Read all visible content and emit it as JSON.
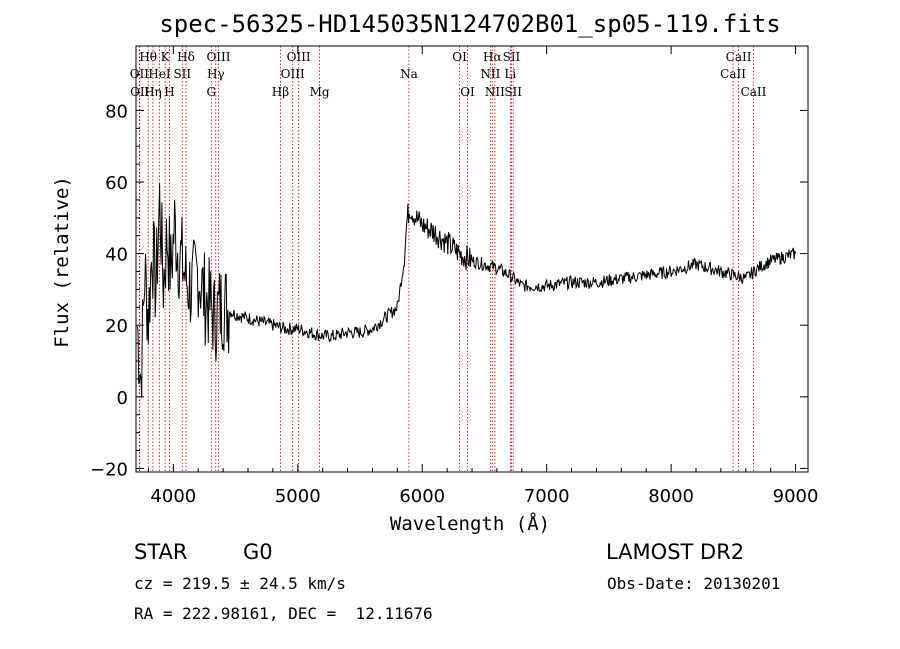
{
  "title": "spec-56325-HD145035N124702B01_sp05-119.fits",
  "info": {
    "class": "STAR",
    "subclass": "G0",
    "cz": "cz = 219.5 ± 24.5 km/s",
    "coords": "RA = 222.98161, DEC =  12.11676",
    "survey": "LAMOST DR2",
    "obs_date": "Obs-Date: 20130201"
  },
  "chart_data": {
    "type": "line",
    "xlabel": "Wavelength (Å)",
    "ylabel": "Flux (relative)",
    "xlim": [
      3700,
      9100
    ],
    "ylim": [
      -21,
      98
    ],
    "xticks": [
      4000,
      5000,
      6000,
      7000,
      8000,
      9000
    ],
    "yticks": [
      -20,
      0,
      20,
      40,
      60,
      80
    ],
    "line_color": "#000000",
    "marker_color": "#c00000",
    "spectral_lines": [
      {
        "label": "Hθ",
        "wavelength": 3798,
        "row": 0
      },
      {
        "label": "OII",
        "wavelength": 3727,
        "row": 1
      },
      {
        "label": "OII",
        "wavelength": 3730,
        "row": 2
      },
      {
        "label": "Hη",
        "wavelength": 3836,
        "row": 2
      },
      {
        "label": "HeI",
        "wavelength": 3889,
        "row": 1
      },
      {
        "label": "K",
        "wavelength": 3934,
        "row": 0
      },
      {
        "label": "H",
        "wavelength": 3969,
        "row": 2
      },
      {
        "label": "SII",
        "wavelength": 4072,
        "row": 1
      },
      {
        "label": "Hδ",
        "wavelength": 4102,
        "row": 0
      },
      {
        "label": "OIII",
        "wavelength": 4363,
        "row": 0
      },
      {
        "label": "Hγ",
        "wavelength": 4341,
        "row": 1
      },
      {
        "label": "G",
        "wavelength": 4305,
        "row": 2
      },
      {
        "label": "Hβ",
        "wavelength": 4861,
        "row": 2
      },
      {
        "label": "OIII",
        "wavelength": 5007,
        "row": 0
      },
      {
        "label": "OIII",
        "wavelength": 4959,
        "row": 1
      },
      {
        "label": "Mg",
        "wavelength": 5175,
        "row": 2
      },
      {
        "label": "Na",
        "wavelength": 5893,
        "row": 1
      },
      {
        "label": "OI",
        "wavelength": 6300,
        "row": 0
      },
      {
        "label": "OI",
        "wavelength": 6364,
        "row": 2
      },
      {
        "label": "Hα",
        "wavelength": 6563,
        "row": 0
      },
      {
        "label": "NII",
        "wavelength": 6548,
        "row": 1
      },
      {
        "label": "NII",
        "wavelength": 6584,
        "row": 2
      },
      {
        "label": "SII",
        "wavelength": 6717,
        "row": 0
      },
      {
        "label": "Li",
        "wavelength": 6708,
        "row": 1
      },
      {
        "label": "SII",
        "wavelength": 6731,
        "row": 2
      },
      {
        "label": "CaII",
        "wavelength": 8542,
        "row": 0
      },
      {
        "label": "CaII",
        "wavelength": 8498,
        "row": 1
      },
      {
        "label": "CaII",
        "wavelength": 8662,
        "row": 2
      }
    ],
    "series": [
      {
        "x": [
          3710,
          3740,
          3770,
          3800,
          3830,
          3860,
          3890,
          3920,
          3950,
          3980,
          4010,
          4040,
          4070,
          4100,
          4150,
          4200,
          4250,
          4300,
          4330,
          4360,
          4400,
          4450,
          4500,
          4600,
          4700,
          4800,
          4900,
          5000,
          5100,
          5200,
          5300,
          5400,
          5500,
          5600,
          5700,
          5800,
          5850,
          5880,
          5900,
          5950,
          6000,
          6100,
          6200,
          6300,
          6400,
          6500,
          6600,
          6700,
          6800,
          7000,
          7200,
          7400,
          7600,
          7800,
          8000,
          8200,
          8400,
          8500,
          8600,
          8700,
          8800,
          8900,
          9000
        ],
        "y": [
          20,
          5,
          35,
          22,
          42,
          30,
          55,
          32,
          45,
          35,
          48,
          40,
          38,
          33,
          30,
          35,
          28,
          25,
          22,
          24,
          26,
          24,
          23,
          22,
          21,
          20,
          19,
          19,
          18,
          17,
          17,
          18,
          18,
          19,
          22,
          25,
          37,
          50,
          53,
          50,
          48,
          46,
          43,
          40,
          38,
          37,
          36,
          34,
          31,
          31,
          32,
          32,
          33,
          34,
          35,
          37,
          35,
          34,
          33,
          36,
          38,
          39,
          40
        ],
        "noise": 6
      }
    ]
  }
}
